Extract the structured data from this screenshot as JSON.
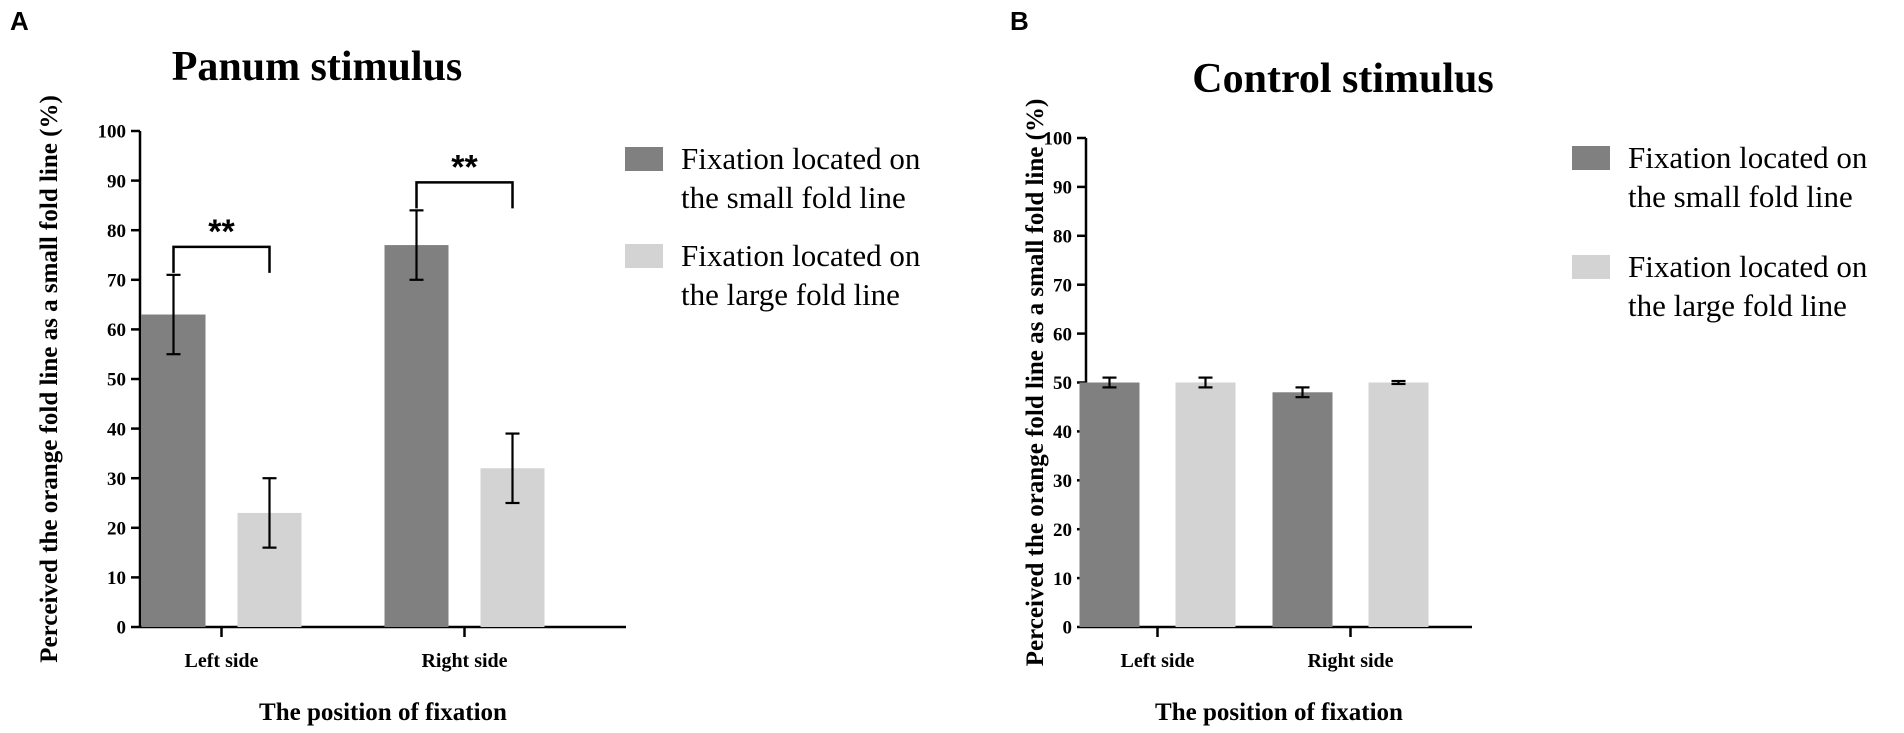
{
  "chart_data": [
    {
      "panel": "A",
      "type": "bar",
      "title": "Panum stimulus",
      "xlabel": "The position of fixation",
      "ylabel": "Perceived the orange fold line as a small fold line (%)",
      "categories": [
        "Left side",
        "Right side"
      ],
      "ylim": [
        0,
        100
      ],
      "yticks": [
        "0",
        "10",
        "20",
        "30",
        "40",
        "50",
        "60",
        "70",
        "80",
        "90",
        "100"
      ],
      "series": [
        {
          "name": "Fixation located on the small fold line",
          "name_lines": [
            "Fixation located on",
            "the small fold line"
          ],
          "color": "#808080",
          "values": [
            63,
            77
          ],
          "errors": [
            8,
            7
          ]
        },
        {
          "name": "Fixation located on the large fold line",
          "name_lines": [
            "Fixation located on",
            "the large fold line"
          ],
          "color": "#d3d3d3",
          "values": [
            23,
            32
          ],
          "errors": [
            7,
            7
          ]
        }
      ],
      "significance": [
        "**",
        "**"
      ],
      "grid": false,
      "legend": "right"
    },
    {
      "panel": "B",
      "type": "bar",
      "title": "Control stimulus",
      "xlabel": "The position of fixation",
      "ylabel": "Perceived the orange fold line as a small fold line (%)",
      "categories": [
        "Left side",
        "Right side"
      ],
      "ylim": [
        0,
        100
      ],
      "yticks": [
        "0",
        "10",
        "20",
        "30",
        "40",
        "50",
        "60",
        "70",
        "80",
        "90",
        "100"
      ],
      "series": [
        {
          "name": "Fixation located on the small fold line",
          "name_lines": [
            "Fixation located on",
            "the small fold line"
          ],
          "color": "#808080",
          "values": [
            50,
            48
          ],
          "errors": [
            1,
            1
          ]
        },
        {
          "name": "Fixation located on the large fold line",
          "name_lines": [
            "Fixation located on",
            "the large fold line"
          ],
          "color": "#d3d3d3",
          "values": [
            50,
            50
          ],
          "errors": [
            1,
            0.3
          ]
        }
      ],
      "significance": [
        "",
        ""
      ],
      "grid": false,
      "legend": "right"
    }
  ]
}
